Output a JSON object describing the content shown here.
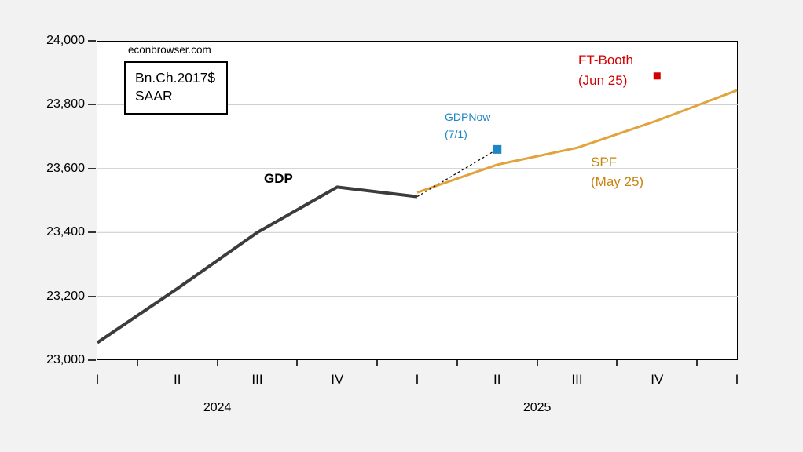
{
  "page": {
    "background": "#f2f2f2",
    "watermark": "econbrowser.com",
    "unit_box": {
      "line1": "Bn.Ch.2017$",
      "line2": "SAAR"
    }
  },
  "colors": {
    "gdp_line": "#3c3c3c",
    "spf_line": "#e2a33c",
    "spf_text": "#c9820e",
    "gdpnow_blue": "#1e86c4",
    "ftbooth_red": "#d40000",
    "gridline": "#c8c8c8",
    "axis": "#000000"
  },
  "annotations": {
    "gdp_label": "GDP",
    "gdpnow_line1": "GDPNow",
    "gdpnow_line2": "(7/1)",
    "ftbooth_line1": "FT-Booth",
    "ftbooth_line2": "(Jun 25)",
    "spf_line1": "SPF",
    "spf_line2": "(May 25)"
  },
  "chart_data": {
    "type": "line",
    "title": "",
    "xlabel": "",
    "ylabel": "Bn.Ch.2017$ SAAR",
    "x_categories": [
      "I",
      "II",
      "III",
      "IV",
      "I",
      "II",
      "III",
      "IV",
      "I"
    ],
    "year_labels": [
      {
        "text": "2024",
        "index": 1.5
      },
      {
        "text": "2025",
        "index": 5.5
      }
    ],
    "ylim": [
      23000,
      24000
    ],
    "yticks": [
      23000,
      23200,
      23400,
      23600,
      23800,
      24000
    ],
    "grid_values": [
      23200,
      23400,
      23600,
      23800
    ],
    "grid": "horizontal-only",
    "legend_position": "none",
    "series": [
      {
        "name": "GDP",
        "type": "line",
        "color": "#3c3c3c",
        "stroke_width": 4,
        "points": [
          {
            "x": 0,
            "value": 23055
          },
          {
            "x": 1,
            "value": 23224
          },
          {
            "x": 2,
            "value": 23400
          },
          {
            "x": 3,
            "value": 23542
          },
          {
            "x": 4,
            "value": 23512
          }
        ]
      },
      {
        "name": "SPF (May 25)",
        "type": "line",
        "color": "#e2a33c",
        "stroke_width": 3,
        "points": [
          {
            "x": 4,
            "value": 23525
          },
          {
            "x": 5,
            "value": 23612
          },
          {
            "x": 6,
            "value": 23665
          },
          {
            "x": 7,
            "value": 23750
          },
          {
            "x": 8,
            "value": 23845
          }
        ]
      },
      {
        "name": "GDPNow (7/1)",
        "type": "scatter",
        "marker": "square",
        "color": "#1e86c4",
        "marker_size": 11,
        "points": [
          {
            "x": 5,
            "value": 23660
          }
        ]
      },
      {
        "name": "FT-Booth (Jun 25)",
        "type": "scatter",
        "marker": "square",
        "color": "#d40000",
        "marker_size": 9,
        "points": [
          {
            "x": 7,
            "value": 23890
          }
        ]
      }
    ],
    "connector": {
      "style": "dashed",
      "dash": "3,3",
      "color": "#111111",
      "stroke_width": 1.3,
      "from": {
        "x": 4,
        "value": 23512
      },
      "to": {
        "x": 5,
        "value": 23660
      }
    }
  }
}
